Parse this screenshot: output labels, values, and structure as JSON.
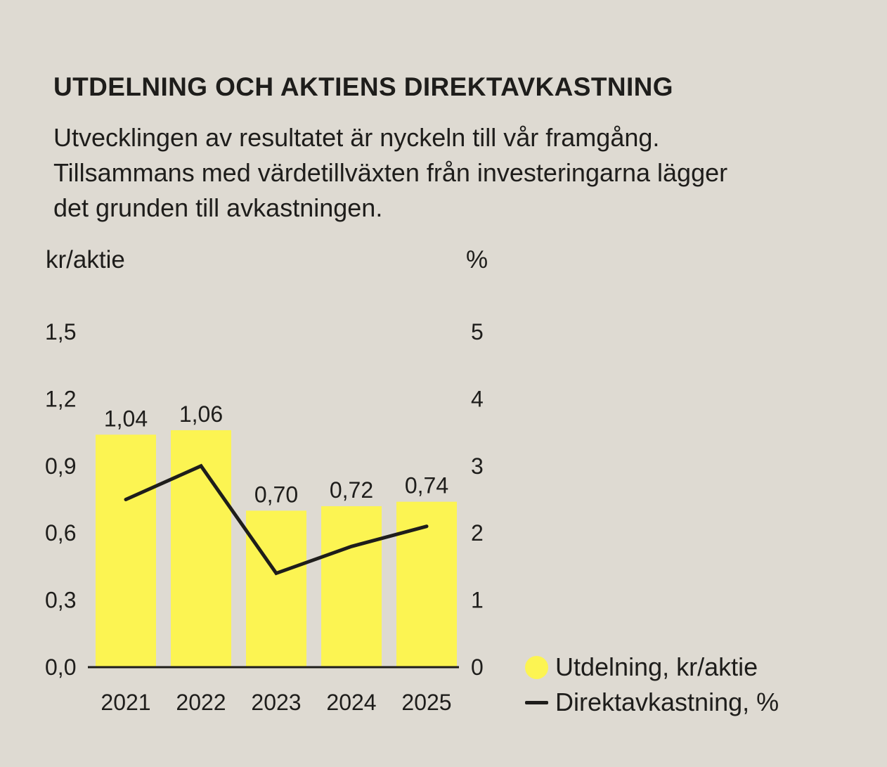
{
  "page": {
    "background_color": "#dedad2",
    "ink_color": "#1e1d1b"
  },
  "title": "UTDELNING OCH AKTIENS DIREKTAVKASTNING",
  "description_lines": [
    "Utvecklingen av resultatet är nyckeln till vår framgång.",
    "Tillsammans med värdetillväxten från investeringarna lägger",
    "det grunden till avkastningen."
  ],
  "chart_data": {
    "type": "bar",
    "subtype": "combo bar + line, dual y-axis",
    "categories": [
      "2021",
      "2022",
      "2023",
      "2024",
      "2025"
    ],
    "series": [
      {
        "name": "Utdelning, kr/aktie",
        "type": "bar",
        "axis": "left",
        "values": [
          1.04,
          1.06,
          0.7,
          0.72,
          0.74
        ],
        "value_labels": [
          "1,04",
          "1,06",
          "0,70",
          "0,72",
          "0,74"
        ],
        "color": "#fcf452"
      },
      {
        "name": "Direktavkastning, %",
        "type": "line",
        "axis": "right",
        "values": [
          2.5,
          3.0,
          1.4,
          1.8,
          2.1
        ],
        "color": "#1e1d1b"
      }
    ],
    "left_axis": {
      "label": "kr/aktie",
      "min": 0,
      "max": 1.5,
      "ticks": [
        "1,5",
        "1,2",
        "0,9",
        "0,6",
        "0,3",
        "0,0"
      ]
    },
    "right_axis": {
      "label": "%",
      "min": 0,
      "max": 5,
      "ticks": [
        "5",
        "4",
        "3",
        "2",
        "1",
        "0"
      ]
    },
    "legend": {
      "position": "bottom-right",
      "items": [
        {
          "marker": "circle",
          "color": "#fcf452",
          "label": "Utdelning, kr/aktie"
        },
        {
          "marker": "line",
          "color": "#1e1d1b",
          "label": "Direktavkastning, %"
        }
      ]
    },
    "grid": false
  }
}
